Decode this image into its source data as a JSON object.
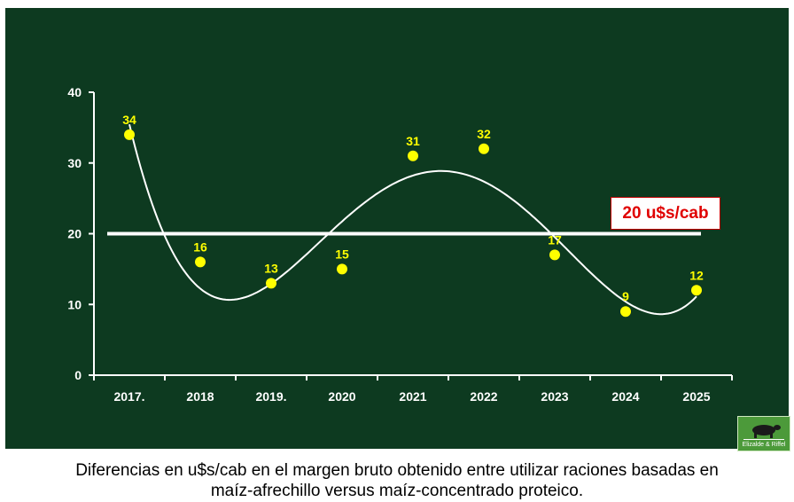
{
  "chart_data": {
    "type": "scatter",
    "categories": [
      "2017.",
      "2018",
      "2019.",
      "2020",
      "2021",
      "2022",
      "2023",
      "2024",
      "2025"
    ],
    "values": [
      34,
      16,
      13,
      15,
      31,
      32,
      17,
      9,
      12
    ],
    "ylim": [
      0,
      40
    ],
    "yticks": [
      0,
      10,
      20,
      30,
      40
    ],
    "reference_line": {
      "value": 20,
      "label": "20 u$s/cab"
    },
    "trend_line": "polynomial",
    "grid": false,
    "colors": {
      "background": "#0d3a20",
      "points": "#ffff00",
      "lines": "#ffffff",
      "reference_label": "#e00000"
    }
  },
  "logo": {
    "text": "Elizalde & Riffel"
  },
  "caption": {
    "line1": "Diferencias en u$s/cab en el margen bruto obtenido entre utilizar raciones basadas en",
    "line2": "maíz-afrechillo versus maíz-concentrado proteico."
  }
}
